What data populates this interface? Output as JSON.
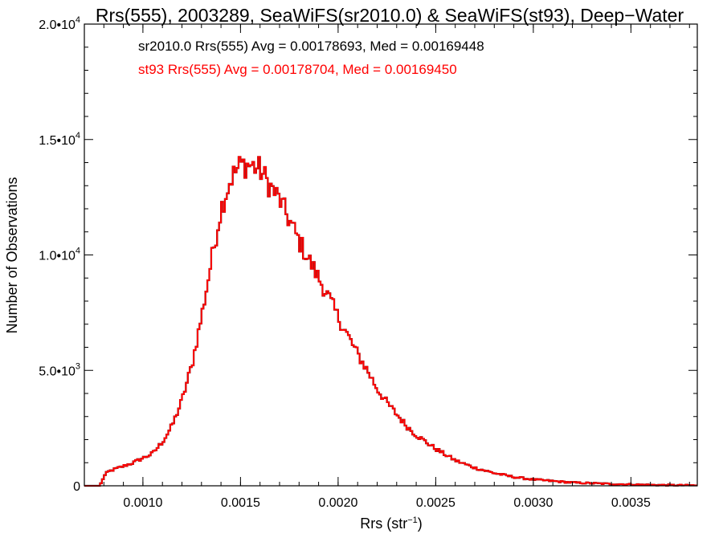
{
  "chart_data": {
    "type": "step-histogram",
    "title": "Rrs(555), 2003289, SeaWiFS(sr2010.0) & SeaWiFS(st93), Deep−Water",
    "xlabel": "Rrs (str",
    "xlabel_sup": "−1",
    "xlabel_close": ")",
    "ylabel": "Number of Observations",
    "xlim": [
      0.0007,
      0.00384
    ],
    "ylim": [
      0,
      20000
    ],
    "x_ticks": [
      {
        "value": 0.001,
        "label": "0.0010"
      },
      {
        "value": 0.0015,
        "label": "0.0015"
      },
      {
        "value": 0.002,
        "label": "0.0020"
      },
      {
        "value": 0.0025,
        "label": "0.0025"
      },
      {
        "value": 0.003,
        "label": "0.0030"
      },
      {
        "value": 0.0035,
        "label": "0.0035"
      }
    ],
    "y_ticks": [
      {
        "value": 0,
        "base": "0",
        "exp": ""
      },
      {
        "value": 5000,
        "base": "5.0•10",
        "exp": "3"
      },
      {
        "value": 10000,
        "base": "1.0•10",
        "exp": "4"
      },
      {
        "value": 15000,
        "base": "1.5•10",
        "exp": "4"
      },
      {
        "value": 20000,
        "base": "2.0•10",
        "exp": "4"
      }
    ],
    "annotations": [
      {
        "text": "sr2010.0 Rrs(555) Avg = 0.00178693, Med = 0.00169448",
        "color": "#000000"
      },
      {
        "text": "st93 Rrs(555) Avg = 0.00178704, Med = 0.00169450",
        "color": "#ff0000"
      }
    ],
    "series_colors": [
      "#000000",
      "#ff0000"
    ],
    "curve_points": [
      [
        0.0007,
        0
      ],
      [
        0.00078,
        0
      ],
      [
        0.0008,
        400
      ],
      [
        0.00082,
        600
      ],
      [
        0.00085,
        700
      ],
      [
        0.0009,
        850
      ],
      [
        0.00095,
        1000
      ],
      [
        0.001,
        1200
      ],
      [
        0.00105,
        1400
      ],
      [
        0.0011,
        1900
      ],
      [
        0.00115,
        2600
      ],
      [
        0.0012,
        3700
      ],
      [
        0.00125,
        5200
      ],
      [
        0.0013,
        7300
      ],
      [
        0.00135,
        9700
      ],
      [
        0.0014,
        12000
      ],
      [
        0.00145,
        13300
      ],
      [
        0.0015,
        13900
      ],
      [
        0.00155,
        13900
      ],
      [
        0.0016,
        13700
      ],
      [
        0.00165,
        13000
      ],
      [
        0.0017,
        12400
      ],
      [
        0.00175,
        11500
      ],
      [
        0.0018,
        10600
      ],
      [
        0.00185,
        9800
      ],
      [
        0.0019,
        9000
      ],
      [
        0.00195,
        8200
      ],
      [
        0.002,
        7300
      ],
      [
        0.00205,
        6500
      ],
      [
        0.0021,
        5700
      ],
      [
        0.00215,
        5000
      ],
      [
        0.0022,
        4200
      ],
      [
        0.00225,
        3600
      ],
      [
        0.0023,
        3100
      ],
      [
        0.00235,
        2600
      ],
      [
        0.0024,
        2200
      ],
      [
        0.00245,
        1900
      ],
      [
        0.0025,
        1600
      ],
      [
        0.00255,
        1350
      ],
      [
        0.0026,
        1100
      ],
      [
        0.0027,
        780
      ],
      [
        0.0028,
        550
      ],
      [
        0.0029,
        380
      ],
      [
        0.003,
        270
      ],
      [
        0.0032,
        140
      ],
      [
        0.0034,
        80
      ],
      [
        0.0036,
        40
      ],
      [
        0.00384,
        15
      ]
    ],
    "bin_width": 1e-05,
    "legend": "none",
    "grid": false
  }
}
